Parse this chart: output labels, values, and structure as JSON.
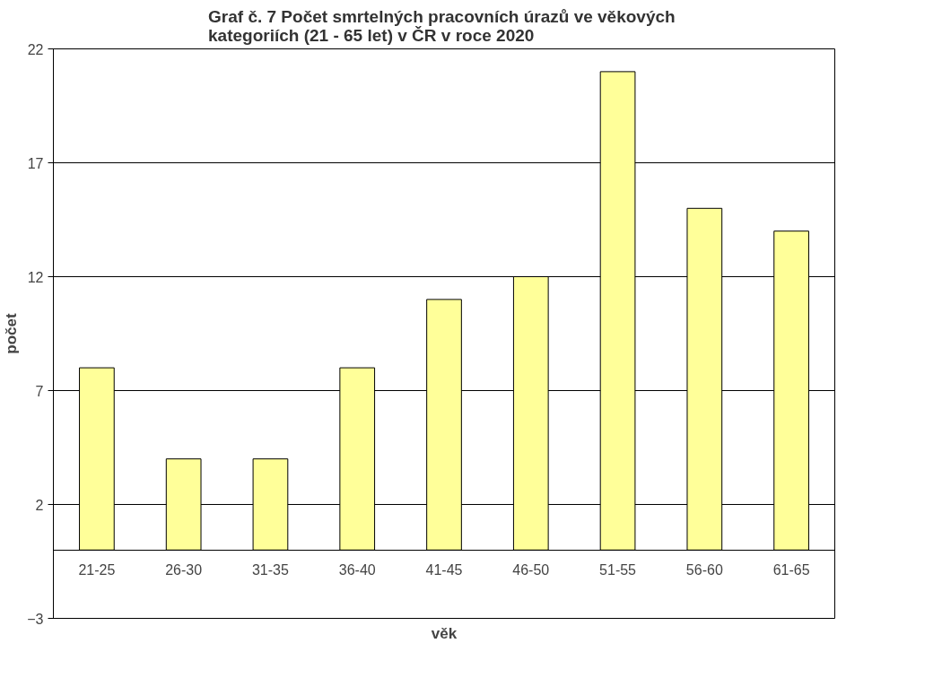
{
  "chart_data": {
    "type": "bar",
    "title": "Graf č. 7  Počet smrtelných pracovních úrazů ve věkových\nkategoriích (21 - 65 let) v ČR v roce 2020",
    "xlabel": "věk",
    "ylabel": "počet",
    "categories": [
      "21-25",
      "26-30",
      "31-35",
      "36-40",
      "41-45",
      "46-50",
      "51-55",
      "56-60",
      "61-65"
    ],
    "values": [
      8,
      4,
      4,
      8,
      11,
      12,
      21,
      15,
      14
    ],
    "color": "#ffff99",
    "ylim": [
      -3,
      22
    ],
    "yticks": [
      -3,
      2,
      7,
      12,
      17,
      22
    ],
    "grid": "y"
  }
}
